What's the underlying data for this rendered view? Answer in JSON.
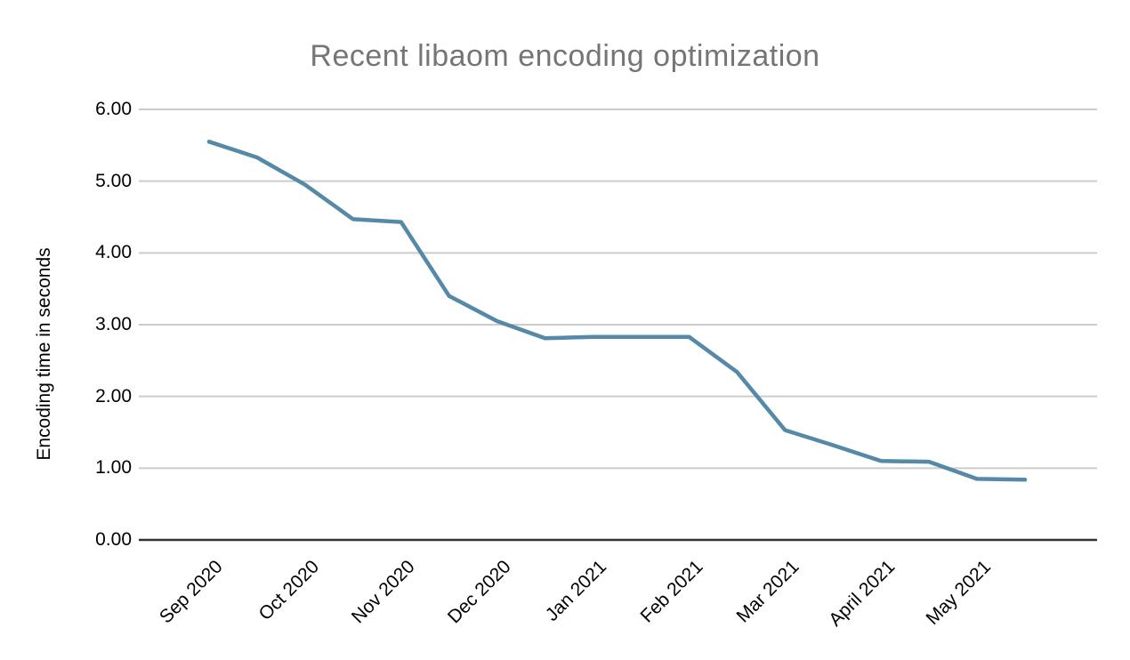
{
  "chart_data": {
    "type": "line",
    "title": "Recent libaom encoding optimization",
    "ylabel": "Encoding time in seconds",
    "xlabel": "",
    "ylim": [
      0,
      6
    ],
    "y_tick_step": 1,
    "y_tick_labels": [
      "0.00",
      "1.00",
      "2.00",
      "3.00",
      "4.00",
      "5.00",
      "6.00"
    ],
    "x_tick_labels": [
      "Sep 2020",
      "Oct 2020",
      "Nov 2020",
      "Dec 2020",
      "Jan 2021",
      "Feb 2021",
      "Mar 2021",
      "April 2021",
      "May 2021"
    ],
    "grid": true,
    "legend_position": "none",
    "points_per_month": 2,
    "series": [
      {
        "name": "Encoding time in seconds",
        "color": "#5589A8",
        "x": [
          "2020-09-01",
          "2020-09-15",
          "2020-10-01",
          "2020-10-15",
          "2020-11-01",
          "2020-11-15",
          "2020-12-01",
          "2020-12-15",
          "2021-01-01",
          "2021-01-15",
          "2021-02-01",
          "2021-02-15",
          "2021-03-01",
          "2021-03-15",
          "2021-04-01",
          "2021-04-15",
          "2021-05-01",
          "2021-05-15"
        ],
        "values": [
          5.55,
          5.33,
          4.95,
          4.47,
          4.43,
          3.4,
          3.05,
          2.81,
          2.83,
          2.83,
          2.83,
          2.34,
          1.53,
          1.32,
          1.1,
          1.09,
          0.85,
          0.84
        ]
      }
    ],
    "colors": {
      "title": "#757575",
      "axis_labels": "#000000",
      "gridline": "#CCCCCC",
      "axis_line": "#333333",
      "background": "#FFFFFF",
      "series": "#5589A8"
    }
  }
}
